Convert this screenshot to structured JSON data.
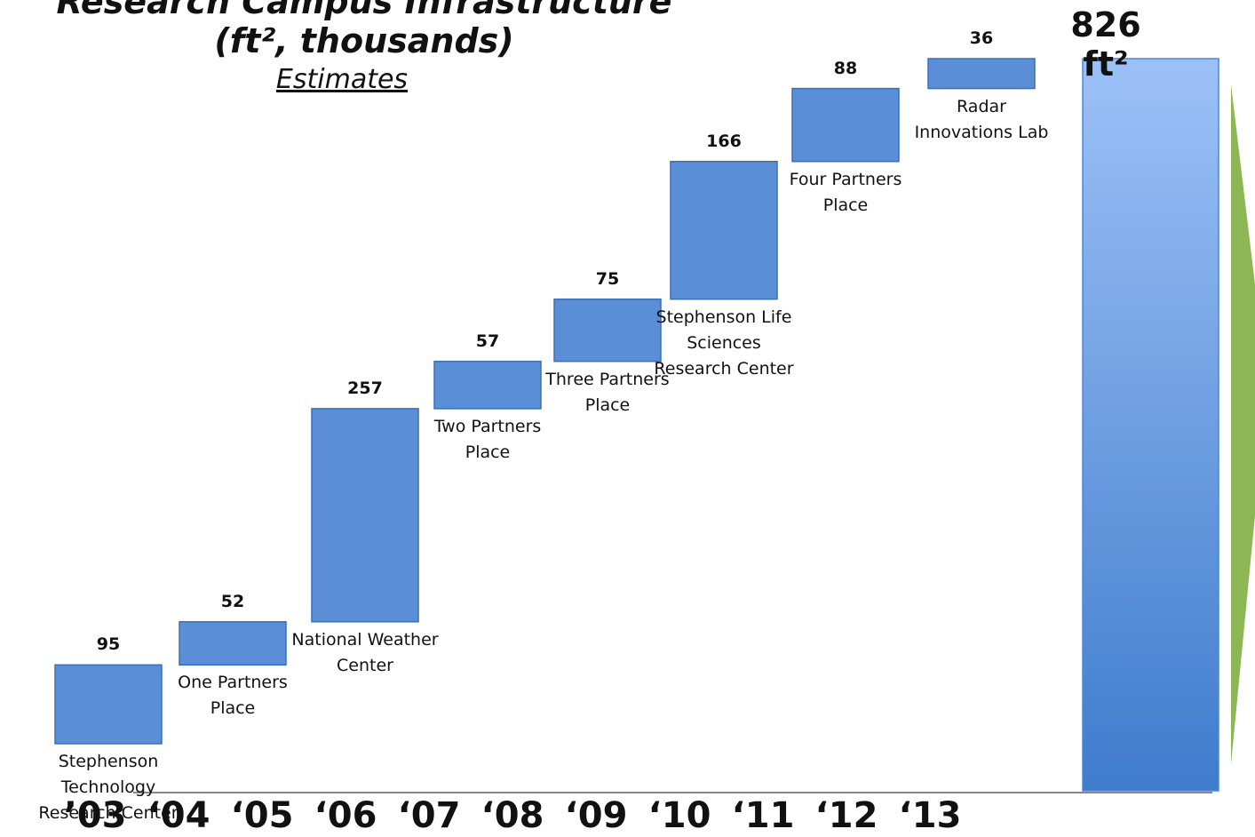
{
  "chart_data": {
    "type": "waterfall",
    "title": "Research Campus Infrastructure",
    "title_unit": "(ft², thousands)",
    "subtitle": "Estimates",
    "categories": [
      "Stephenson Technology Research Center",
      "One Partners Place",
      "National Weather Center",
      "Two Partners Place",
      "Three Partners Place",
      "Stephenson Life Sciences Research Center",
      "Four Partners Place",
      "Radar Innovations Lab"
    ],
    "values": [
      95,
      52,
      257,
      57,
      75,
      166,
      88,
      36
    ],
    "color": "#5a8fd8",
    "total": 826,
    "total_label": "826 ft²",
    "total_color": "#4d86d6",
    "years": [
      "’03",
      "‘04",
      "‘05",
      "‘06",
      "‘07",
      "‘08",
      "‘09",
      "‘10",
      "‘11",
      "‘12",
      "‘13"
    ],
    "ylim": [
      0,
      826
    ]
  }
}
